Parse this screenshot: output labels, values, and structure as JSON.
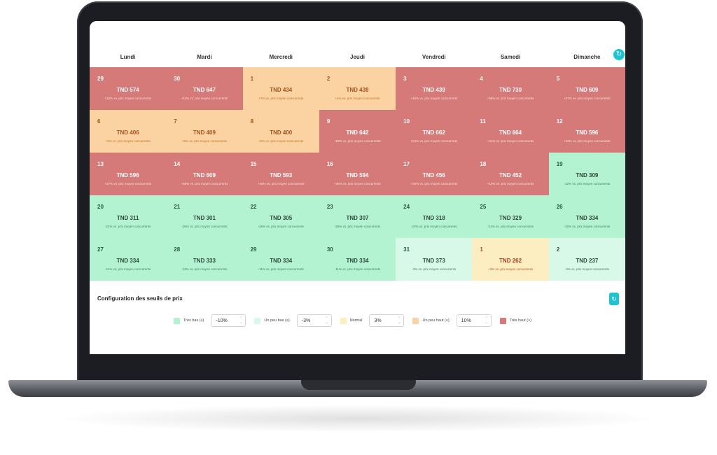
{
  "weekdays": [
    "Lundi",
    "Mardi",
    "Mercredi",
    "Jeudi",
    "Vendredi",
    "Samedi",
    "Dimanche"
  ],
  "calendar": [
    {
      "day": "29",
      "price": "TND 574",
      "delta": "+15% vs. prix moyen concurrents",
      "level": "high"
    },
    {
      "day": "30",
      "price": "TND 647",
      "delta": "+11% vs. prix moyen concurrents",
      "level": "high"
    },
    {
      "day": "1",
      "price": "TND 434",
      "delta": "+7% vs. prix moyen concurrents",
      "level": "mhigh"
    },
    {
      "day": "2",
      "price": "TND 438",
      "delta": "+4% vs. prix moyen concurrents",
      "level": "mhigh"
    },
    {
      "day": "3",
      "price": "TND 439",
      "delta": "+15% vs. prix moyen concurrents",
      "level": "high"
    },
    {
      "day": "4",
      "price": "TND 730",
      "delta": "+56% vs. prix moyen concurrents",
      "level": "high"
    },
    {
      "day": "5",
      "price": "TND 609",
      "delta": "+47% vs. prix moyen concurrents",
      "level": "high"
    },
    {
      "day": "6",
      "price": "TND 406",
      "delta": "+5% vs. prix moyen concurrents",
      "level": "mhigh"
    },
    {
      "day": "7",
      "price": "TND 409",
      "delta": "+6% vs. prix moyen concurrents",
      "level": "mhigh"
    },
    {
      "day": "8",
      "price": "TND 400",
      "delta": "+5% vs. prix moyen concurrents",
      "level": "mhigh"
    },
    {
      "day": "9",
      "price": "TND 642",
      "delta": "+58% vs. prix moyen concurrents",
      "level": "high"
    },
    {
      "day": "10",
      "price": "TND 662",
      "delta": "+52% vs. prix moyen concurrents",
      "level": "high"
    },
    {
      "day": "11",
      "price": "TND 664",
      "delta": "+41% vs. prix moyen concurrents",
      "level": "high"
    },
    {
      "day": "12",
      "price": "TND 596",
      "delta": "+34% vs. prix moyen concurrents",
      "level": "high"
    },
    {
      "day": "13",
      "price": "TND 596",
      "delta": "+37% vs. prix moyen concurrents",
      "level": "high"
    },
    {
      "day": "14",
      "price": "TND 609",
      "delta": "+58% vs. prix moyen concurrents",
      "level": "high"
    },
    {
      "day": "15",
      "price": "TND 593",
      "delta": "+48% vs. prix moyen concurrents",
      "level": "high"
    },
    {
      "day": "16",
      "price": "TND 594",
      "delta": "+46% vs. prix moyen concurrents",
      "level": "high"
    },
    {
      "day": "17",
      "price": "TND 456",
      "delta": "+20% vs. prix moyen concurrents",
      "level": "high"
    },
    {
      "day": "18",
      "price": "TND 452",
      "delta": "+15% vs. prix moyen concurrents",
      "level": "high"
    },
    {
      "day": "19",
      "price": "TND 309",
      "delta": "-22% vs. prix moyen concurrents",
      "level": "low"
    },
    {
      "day": "20",
      "price": "TND 311",
      "delta": "-22% vs. prix moyen concurrents",
      "level": "low"
    },
    {
      "day": "21",
      "price": "TND 301",
      "delta": "-26% vs. prix moyen concurrents",
      "level": "low"
    },
    {
      "day": "22",
      "price": "TND 305",
      "delta": "-26% vs. prix moyen concurrents",
      "level": "low"
    },
    {
      "day": "23",
      "price": "TND 307",
      "delta": "-25% vs. prix moyen concurrents",
      "level": "low"
    },
    {
      "day": "24",
      "price": "TND 318",
      "delta": "-23% vs. prix moyen concurrents",
      "level": "low"
    },
    {
      "day": "25",
      "price": "TND 329",
      "delta": "-21% vs. prix moyen concurrents",
      "level": "low"
    },
    {
      "day": "26",
      "price": "TND 334",
      "delta": "-20% vs. prix moyen concurrents",
      "level": "low"
    },
    {
      "day": "27",
      "price": "TND 334",
      "delta": "-11% vs. prix moyen concurrents",
      "level": "low"
    },
    {
      "day": "28",
      "price": "TND 333",
      "delta": "-12% vs. prix moyen concurrents",
      "level": "low"
    },
    {
      "day": "29",
      "price": "TND 334",
      "delta": "-11% vs. prix moyen concurrents",
      "level": "low"
    },
    {
      "day": "30",
      "price": "TND 334",
      "delta": "-11% vs. prix moyen concurrents",
      "level": "low"
    },
    {
      "day": "31",
      "price": "TND 373",
      "delta": "-3% vs. prix moyen concurrents",
      "level": "mlow"
    },
    {
      "day": "1",
      "price": "TND 262",
      "delta": "+3% vs. prix moyen concurrents",
      "level": "norm"
    },
    {
      "day": "2",
      "price": "TND 237",
      "delta": "-3% vs. prix moyen concurrents",
      "level": "mlow"
    }
  ],
  "config": {
    "title": "Configuration des seuils de prix",
    "refresh_icon": "refresh-icon",
    "legend": [
      {
        "label": "Très bas (≤)",
        "color": "#b4f3d2",
        "value": "-10%"
      },
      {
        "label": "Un peu bas (≤)",
        "color": "#d8f8e8",
        "value": "-3%"
      },
      {
        "label": "Normal",
        "color": "#fdeec2",
        "value": "3%"
      },
      {
        "label": "Un peu haut (≤)",
        "color": "#fbd3a3",
        "value": "10%"
      },
      {
        "label": "Très haut (>)",
        "color": "#d57a78",
        "value": ""
      }
    ]
  },
  "refresh_glyph": "↻"
}
